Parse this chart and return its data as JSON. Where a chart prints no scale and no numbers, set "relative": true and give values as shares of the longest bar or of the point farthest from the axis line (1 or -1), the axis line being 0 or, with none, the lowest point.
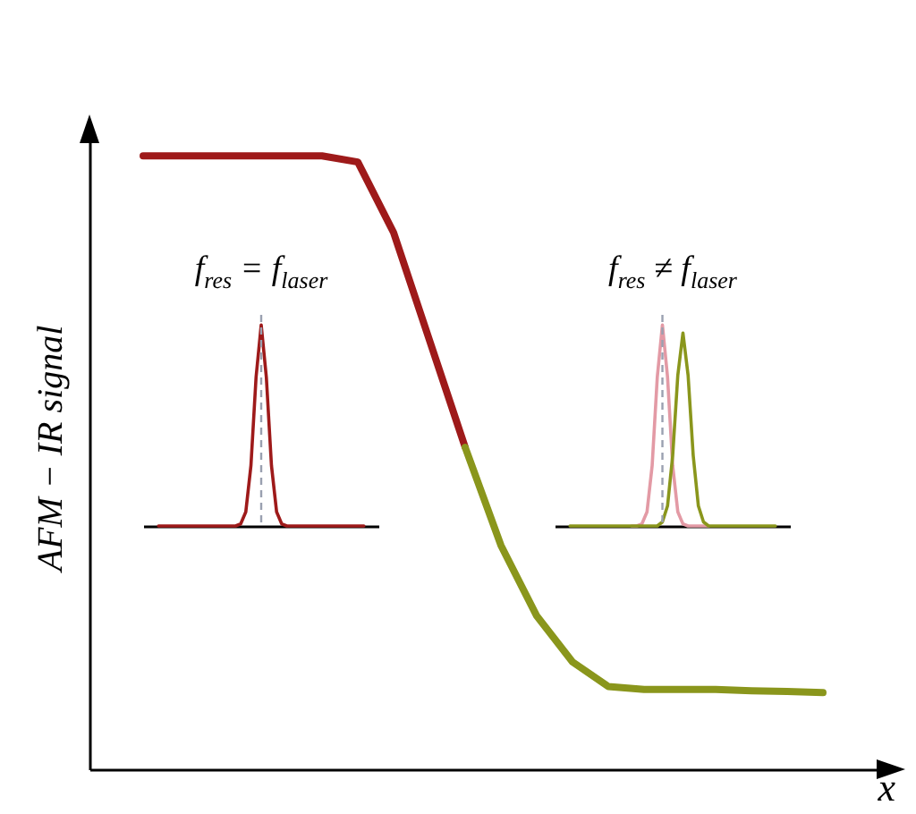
{
  "chart_data": [
    {
      "type": "line",
      "relative": true,
      "xlabel": "x",
      "ylabel": "AFM − IR signal",
      "categories": [
        null,
        null,
        null,
        null,
        null,
        null,
        null,
        null,
        null,
        null,
        null,
        null,
        null,
        null,
        null,
        null,
        null,
        null,
        null,
        null
      ],
      "series": [
        {
          "color": "#9e1a1a",
          "values": [
            1.0,
            1.0,
            1.0,
            1.0,
            1.0,
            1.0,
            0.99,
            0.875,
            0.7,
            0.525,
            null,
            null,
            null,
            null,
            null,
            null,
            null,
            null,
            null,
            null
          ]
        },
        {
          "color": "#8a961c",
          "values": [
            null,
            null,
            null,
            null,
            null,
            null,
            null,
            null,
            null,
            0.525,
            0.365,
            0.25,
            0.175,
            0.135,
            0.13,
            0.13,
            0.13,
            0.128,
            0.127,
            0.125
          ]
        }
      ],
      "legend": false,
      "marker": "none",
      "line_style": "solid"
    },
    {
      "type": "line",
      "relative": true,
      "title": "f$_{res}$ = f$_{laser}$",
      "categories": [
        null,
        null,
        null,
        null,
        null,
        null,
        null,
        null,
        null,
        null,
        null,
        null,
        null,
        null,
        null,
        null,
        null,
        null,
        null,
        null,
        null,
        null,
        null,
        null,
        null,
        null,
        null,
        null,
        null,
        null,
        null,
        null,
        null,
        null,
        null,
        null,
        null,
        null,
        null,
        null,
        null
      ],
      "series": [
        {
          "color": "#9e1a1a",
          "values": [
            0,
            0,
            0,
            0,
            0,
            0,
            0,
            0,
            0,
            0,
            0,
            0,
            0,
            0,
            0,
            0,
            0.01,
            0.07,
            0.3,
            0.74,
            1,
            0.74,
            0.3,
            0.07,
            0.01,
            0,
            0,
            0,
            0,
            0,
            0,
            0,
            0,
            0,
            0,
            0,
            0,
            0,
            0,
            0,
            0
          ]
        }
      ],
      "ref_lines": [
        {
          "axis": "x",
          "color": "#9aa0b0",
          "line_style": "dashed"
        }
      ],
      "legend": false,
      "marker": "none",
      "line_style": "solid"
    },
    {
      "type": "line",
      "relative": true,
      "title": "f$_{res}$ ≠ f$_{laser}$",
      "categories": [
        null,
        null,
        null,
        null,
        null,
        null,
        null,
        null,
        null,
        null,
        null,
        null,
        null,
        null,
        null,
        null,
        null,
        null,
        null,
        null,
        null,
        null,
        null,
        null,
        null,
        null,
        null,
        null,
        null,
        null,
        null,
        null,
        null,
        null,
        null,
        null,
        null,
        null,
        null,
        null,
        null
      ],
      "series": [
        {
          "color": "#e39aa5",
          "values": [
            null,
            null,
            null,
            null,
            null,
            null,
            null,
            null,
            null,
            null,
            null,
            null,
            0,
            0,
            0.01,
            0.07,
            0.3,
            0.74,
            1,
            0.74,
            0.3,
            0.07,
            0.01,
            0,
            0,
            0,
            0,
            0,
            null,
            null,
            null,
            null,
            null,
            null,
            null,
            null,
            null,
            null,
            null,
            null,
            null
          ]
        },
        {
          "color": "#8a961c",
          "values": [
            0,
            0,
            0,
            0,
            0,
            0,
            0,
            0,
            0,
            0,
            0,
            0,
            0,
            0,
            0,
            0,
            0,
            0,
            0.02,
            0.1,
            0.35,
            0.75,
            0.96,
            0.75,
            0.35,
            0.1,
            0.02,
            0,
            0,
            0,
            0,
            0,
            0,
            0,
            0,
            0,
            0,
            0,
            0,
            0,
            0
          ]
        }
      ],
      "ref_lines": [
        {
          "axis": "x",
          "color": "#9aa0b0",
          "line_style": "dashed"
        }
      ],
      "legend": false,
      "marker": "none",
      "line_style": "solid"
    }
  ]
}
